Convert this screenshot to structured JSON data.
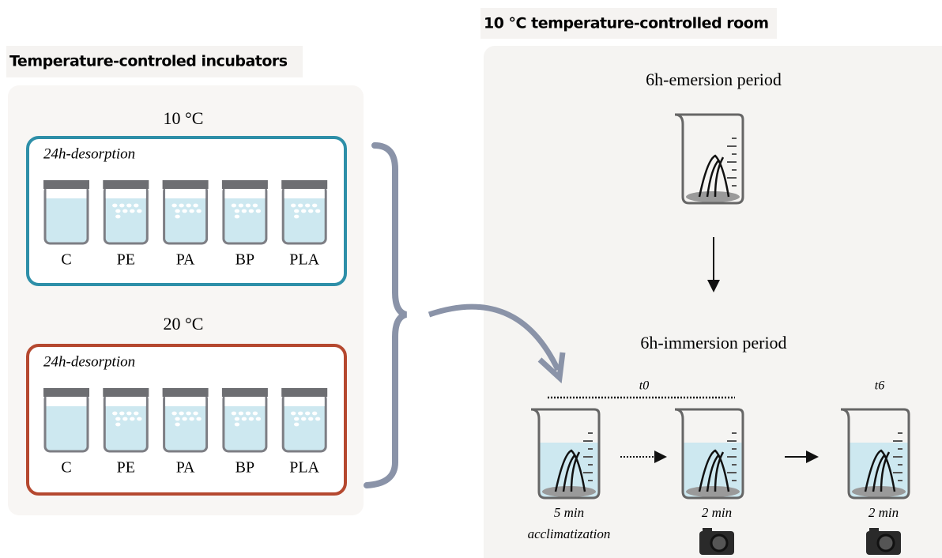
{
  "incubators": {
    "title": "Temperature-controled incubators",
    "groups": [
      {
        "temperature": "10 °C",
        "label": "24h-desorption",
        "vials": [
          "C",
          "PE",
          "PA",
          "BP",
          "PLA"
        ]
      },
      {
        "temperature": "20 °C",
        "label": "24h-desorption",
        "vials": [
          "C",
          "PE",
          "PA",
          "BP",
          "PLA"
        ]
      }
    ]
  },
  "room": {
    "title": "10 °C  temperature-controlled room",
    "emersion": "6h-emersion period",
    "immersion": "6h-immersion period",
    "t0": "t0",
    "t6": "t6",
    "steps": [
      {
        "time": "5 min",
        "note": "acclimatization"
      },
      {
        "time": "2 min"
      },
      {
        "time": "2 min"
      }
    ]
  }
}
